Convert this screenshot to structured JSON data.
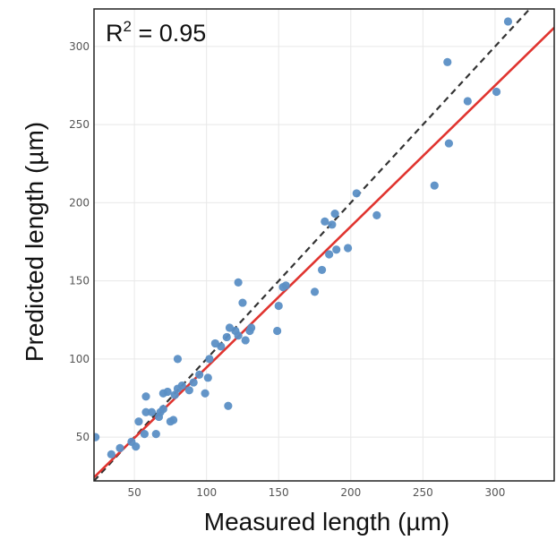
{
  "chart_data": {
    "type": "scatter",
    "xlabel": "Measured length (µm)",
    "ylabel": "Predicted length (µm)",
    "annotation": {
      "prefix": "R",
      "superscript": "2",
      "suffix": " = 0.95"
    },
    "xlim": [
      22,
      341
    ],
    "ylim": [
      22,
      324
    ],
    "xticks": [
      50,
      100,
      150,
      200,
      250,
      300
    ],
    "yticks": [
      50,
      100,
      150,
      200,
      250,
      300
    ],
    "grid": true,
    "colors": {
      "points": "#5b8fc5",
      "fit_line": "#e0342f",
      "identity_line": "#333333",
      "grid": "#e8e8e8"
    },
    "identity_line": {
      "style": "dashed",
      "slope": 1,
      "intercept": 0
    },
    "fit_line": {
      "slope": 0.902,
      "intercept": 4.4
    },
    "points": [
      {
        "x": 23,
        "y": 50
      },
      {
        "x": 34,
        "y": 39
      },
      {
        "x": 40,
        "y": 43
      },
      {
        "x": 48,
        "y": 47
      },
      {
        "x": 51,
        "y": 44
      },
      {
        "x": 53,
        "y": 60
      },
      {
        "x": 57,
        "y": 52
      },
      {
        "x": 58,
        "y": 66
      },
      {
        "x": 58,
        "y": 76
      },
      {
        "x": 62,
        "y": 66
      },
      {
        "x": 65,
        "y": 52
      },
      {
        "x": 67,
        "y": 63
      },
      {
        "x": 68,
        "y": 66
      },
      {
        "x": 70,
        "y": 68
      },
      {
        "x": 70,
        "y": 78
      },
      {
        "x": 73,
        "y": 79
      },
      {
        "x": 75,
        "y": 60
      },
      {
        "x": 77,
        "y": 61
      },
      {
        "x": 78,
        "y": 77
      },
      {
        "x": 80,
        "y": 81
      },
      {
        "x": 80,
        "y": 100
      },
      {
        "x": 83,
        "y": 83
      },
      {
        "x": 88,
        "y": 80
      },
      {
        "x": 91,
        "y": 85
      },
      {
        "x": 95,
        "y": 90
      },
      {
        "x": 99,
        "y": 78
      },
      {
        "x": 101,
        "y": 88
      },
      {
        "x": 102,
        "y": 100
      },
      {
        "x": 106,
        "y": 110
      },
      {
        "x": 110,
        "y": 108
      },
      {
        "x": 114,
        "y": 114
      },
      {
        "x": 115,
        "y": 70
      },
      {
        "x": 116,
        "y": 120
      },
      {
        "x": 120,
        "y": 118
      },
      {
        "x": 122,
        "y": 115
      },
      {
        "x": 122,
        "y": 149
      },
      {
        "x": 125,
        "y": 136
      },
      {
        "x": 127,
        "y": 112
      },
      {
        "x": 130,
        "y": 118
      },
      {
        "x": 131,
        "y": 120
      },
      {
        "x": 149,
        "y": 118
      },
      {
        "x": 150,
        "y": 134
      },
      {
        "x": 153,
        "y": 146
      },
      {
        "x": 155,
        "y": 147
      },
      {
        "x": 175,
        "y": 143
      },
      {
        "x": 180,
        "y": 157
      },
      {
        "x": 182,
        "y": 188
      },
      {
        "x": 185,
        "y": 167
      },
      {
        "x": 187,
        "y": 186
      },
      {
        "x": 189,
        "y": 193
      },
      {
        "x": 190,
        "y": 170
      },
      {
        "x": 198,
        "y": 171
      },
      {
        "x": 204,
        "y": 206
      },
      {
        "x": 218,
        "y": 192
      },
      {
        "x": 258,
        "y": 211
      },
      {
        "x": 267,
        "y": 290
      },
      {
        "x": 268,
        "y": 238
      },
      {
        "x": 281,
        "y": 265
      },
      {
        "x": 301,
        "y": 271
      },
      {
        "x": 309,
        "y": 316
      }
    ]
  }
}
